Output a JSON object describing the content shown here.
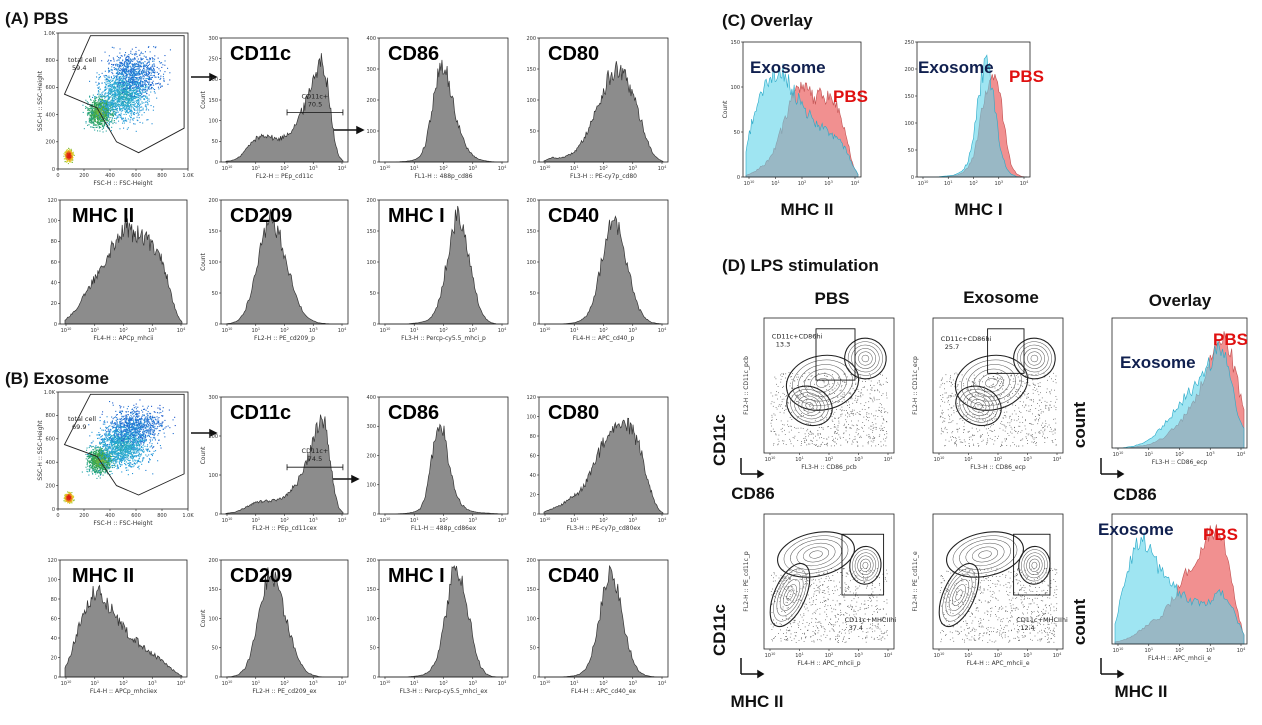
{
  "figure": {
    "sections": {
      "A": "(A) PBS",
      "B": "(B) Exosome",
      "C": "(C) Overlay",
      "D": "(D) LPS stimulation"
    },
    "colors": {
      "hist": "#8c8c8c",
      "exosome": "#5fd3ea",
      "pbs": "#f08a8a",
      "exosome_label": "#10204f",
      "pbs_label": "#e01010"
    }
  },
  "chart_data": [
    {
      "id": "A-scatter",
      "type": "scatter",
      "xlabel": "FSC-H :: FSC-Height",
      "ylabel": "SSC-H :: SSC-Height",
      "xticks": [
        "0",
        "200",
        "400",
        "600",
        "800",
        "1.0K"
      ],
      "yticks": [
        "0",
        "200",
        "400",
        "600",
        "800",
        "1.0K"
      ],
      "gate": {
        "name": "total cell",
        "value": "59.4"
      }
    },
    {
      "id": "A-cd11c",
      "type": "histogram",
      "marker": "CD11c",
      "xlabel": "FL2-H :: PEp_cd11c",
      "ylabel": "Count",
      "yticks": [
        "0",
        "50",
        "100",
        "150",
        "200",
        "250",
        "300"
      ],
      "ylim": [
        0,
        300
      ],
      "gate": {
        "name": "CD11c+",
        "value": "70.5"
      },
      "curve": [
        2,
        3,
        6,
        12,
        24,
        38,
        50,
        60,
        65,
        70,
        66,
        60,
        58,
        62,
        70,
        80,
        95,
        115,
        140,
        170,
        210,
        240,
        255,
        230,
        150,
        60,
        15,
        3
      ]
    },
    {
      "id": "A-cd86",
      "type": "histogram",
      "marker": "CD86",
      "xlabel": "FL1-H :: 488p_cd86",
      "ylabel": "",
      "yticks": [
        "0",
        "100",
        "200",
        "300",
        "400"
      ],
      "ylim": [
        0,
        400
      ],
      "curve": [
        0,
        0,
        0,
        1,
        2,
        4,
        8,
        20,
        60,
        150,
        260,
        340,
        310,
        230,
        150,
        90,
        50,
        25,
        12,
        6,
        3,
        1,
        0,
        0
      ]
    },
    {
      "id": "A-cd80",
      "type": "histogram",
      "marker": "CD80",
      "xlabel": "FL3-H :: PE-cy7p_cd80",
      "ylabel": "",
      "yticks": [
        "0",
        "50",
        "100",
        "150",
        "200"
      ],
      "ylim": [
        0,
        200
      ],
      "curve": [
        2,
        5,
        8,
        6,
        8,
        10,
        14,
        20,
        30,
        45,
        62,
        80,
        100,
        120,
        140,
        150,
        155,
        150,
        140,
        120,
        100,
        75,
        50,
        28,
        12,
        5,
        1
      ]
    },
    {
      "id": "A-mhcii",
      "type": "histogram",
      "marker": "MHC II",
      "xlabel": "FL4-H :: APCp_mhcii",
      "ylabel": "",
      "yticks": [
        "0",
        "20",
        "40",
        "60",
        "80",
        "100",
        "120"
      ],
      "ylim": [
        0,
        120
      ],
      "curve": [
        4,
        8,
        12,
        18,
        25,
        33,
        40,
        48,
        56,
        64,
        72,
        80,
        88,
        95,
        98,
        95,
        92,
        90,
        88,
        85,
        82,
        78,
        70,
        56,
        40,
        22,
        8,
        2
      ]
    },
    {
      "id": "A-cd209",
      "type": "histogram",
      "marker": "CD209",
      "xlabel": "FL2-H :: PE_cd209_p",
      "ylabel": "Count",
      "yticks": [
        "0",
        "50",
        "100",
        "150",
        "200"
      ],
      "ylim": [
        0,
        200
      ],
      "curve": [
        0,
        2,
        6,
        20,
        50,
        100,
        150,
        180,
        165,
        140,
        100,
        60,
        30,
        14,
        6,
        2,
        1,
        0,
        0,
        0
      ]
    },
    {
      "id": "A-mhci",
      "type": "histogram",
      "marker": "MHC I",
      "xlabel": "FL3-H :: Percp-cy5.5_mhci_p",
      "ylabel": "",
      "yticks": [
        "0",
        "50",
        "100",
        "150",
        "200"
      ],
      "ylim": [
        0,
        200
      ],
      "curve": [
        0,
        0,
        0,
        0,
        0,
        1,
        2,
        4,
        8,
        20,
        50,
        100,
        160,
        185,
        160,
        110,
        60,
        25,
        8,
        2,
        0,
        0
      ]
    },
    {
      "id": "A-cd40",
      "type": "histogram",
      "marker": "CD40",
      "xlabel": "FL4-H :: APC_cd40_p",
      "ylabel": "",
      "yticks": [
        "0",
        "50",
        "100",
        "150",
        "200"
      ],
      "ylim": [
        0,
        200
      ],
      "curve": [
        0,
        0,
        0,
        0,
        1,
        2,
        5,
        12,
        30,
        70,
        120,
        165,
        180,
        150,
        100,
        55,
        25,
        10,
        3,
        1,
        0
      ]
    },
    {
      "id": "B-scatter",
      "type": "scatter",
      "xlabel": "FSC-H :: FSC-Height",
      "ylabel": "SSC-H :: SSC-Height",
      "xticks": [
        "0",
        "200",
        "400",
        "600",
        "800",
        "1.0K"
      ],
      "yticks": [
        "0",
        "200",
        "400",
        "600",
        "800",
        "1.0K"
      ],
      "gate": {
        "name": "total cell",
        "value": "69.9"
      }
    },
    {
      "id": "B-cd11c",
      "type": "histogram",
      "marker": "CD11c",
      "xlabel": "FL2-H :: PEp_cd11cex",
      "ylabel": "Count",
      "yticks": [
        "0",
        "100",
        "200",
        "300"
      ],
      "ylim": [
        0,
        300
      ],
      "gate": {
        "name": "CD11c+",
        "value": "74.5"
      },
      "curve": [
        2,
        3,
        5,
        10,
        16,
        22,
        28,
        32,
        34,
        35,
        36,
        38,
        42,
        48,
        58,
        72,
        90,
        115,
        145,
        180,
        220,
        260,
        245,
        160,
        70,
        18,
        4
      ]
    },
    {
      "id": "B-cd86",
      "type": "histogram",
      "marker": "CD86",
      "xlabel": "FL1-H :: 488p_cd86ex",
      "ylabel": "",
      "yticks": [
        "0",
        "100",
        "200",
        "300",
        "400"
      ],
      "ylim": [
        0,
        400
      ],
      "curve": [
        0,
        0,
        0,
        1,
        2,
        4,
        8,
        18,
        60,
        170,
        300,
        350,
        250,
        140,
        70,
        35,
        18,
        10,
        6,
        4,
        3,
        2,
        1,
        0
      ]
    },
    {
      "id": "B-cd80",
      "type": "histogram",
      "marker": "CD80",
      "xlabel": "FL3-H :: PE-cy7p_cd80ex",
      "ylabel": "",
      "yticks": [
        "0",
        "20",
        "40",
        "60",
        "80",
        "100",
        "120"
      ],
      "ylim": [
        0,
        120
      ],
      "curve": [
        2,
        4,
        6,
        8,
        10,
        14,
        18,
        20,
        24,
        30,
        38,
        48,
        60,
        72,
        82,
        88,
        92,
        96,
        98,
        95,
        90,
        80,
        66,
        48,
        30,
        14,
        5,
        1
      ]
    },
    {
      "id": "B-mhcii",
      "type": "histogram",
      "marker": "MHC II",
      "xlabel": "FL4-H :: APCp_mhciiex",
      "ylabel": "",
      "yticks": [
        "0",
        "20",
        "40",
        "60",
        "80",
        "100",
        "120"
      ],
      "ylim": [
        0,
        120
      ],
      "curve": [
        10,
        22,
        38,
        55,
        70,
        82,
        90,
        92,
        88,
        80,
        72,
        64,
        56,
        50,
        44,
        40,
        36,
        32,
        28,
        24,
        20,
        16,
        12,
        8,
        4,
        1
      ]
    },
    {
      "id": "B-cd209",
      "type": "histogram",
      "marker": "CD209",
      "xlabel": "FL2-H :: PE_cd209_ex",
      "ylabel": "Count",
      "yticks": [
        "0",
        "50",
        "100",
        "150",
        "200"
      ],
      "ylim": [
        0,
        200
      ],
      "curve": [
        0,
        1,
        4,
        14,
        40,
        90,
        150,
        190,
        175,
        140,
        95,
        55,
        26,
        10,
        4,
        1,
        0,
        0,
        0,
        0
      ]
    },
    {
      "id": "B-mhci",
      "type": "histogram",
      "marker": "MHC I",
      "xlabel": "FL3-H :: Percp-cy5.5_mhci_ex",
      "ylabel": "",
      "yticks": [
        "0",
        "50",
        "100",
        "150",
        "200"
      ],
      "ylim": [
        0,
        200
      ],
      "curve": [
        0,
        0,
        0,
        0,
        0,
        1,
        2,
        4,
        10,
        25,
        60,
        120,
        180,
        200,
        170,
        110,
        55,
        20,
        6,
        1,
        0,
        0
      ]
    },
    {
      "id": "B-cd40",
      "type": "histogram",
      "marker": "CD40",
      "xlabel": "FL4-H :: APC_cd40_ex",
      "ylabel": "",
      "yticks": [
        "0",
        "50",
        "100",
        "150",
        "200"
      ],
      "ylim": [
        0,
        200
      ],
      "curve": [
        0,
        0,
        0,
        0,
        1,
        2,
        5,
        14,
        40,
        90,
        150,
        195,
        175,
        120,
        65,
        28,
        10,
        3,
        1,
        0,
        0
      ]
    },
    {
      "id": "C-mhcii",
      "type": "overlay-histogram",
      "xlabel": "",
      "ylabel": "Count",
      "yticks": [
        "0",
        "50",
        "100",
        "150"
      ],
      "ylim": [
        0,
        150
      ],
      "axis_title": "MHC II",
      "legend": {
        "exosome": "Exosome",
        "pbs": "PBS"
      },
      "series": [
        {
          "name": "Exosome",
          "curve": [
            30,
            55,
            75,
            90,
            100,
            108,
            112,
            118,
            122,
            115,
            105,
            95,
            88,
            80,
            72,
            66,
            60,
            56,
            52,
            48,
            44,
            40,
            34,
            24,
            12,
            3
          ]
        },
        {
          "name": "PBS",
          "curve": [
            2,
            4,
            6,
            10,
            14,
            20,
            28,
            40,
            55,
            70,
            85,
            95,
            100,
            98,
            96,
            92,
            94,
            96,
            92,
            88,
            82,
            72,
            55,
            32,
            12,
            3
          ]
        }
      ]
    },
    {
      "id": "C-mhci",
      "type": "overlay-histogram",
      "xlabel": "",
      "ylabel": "",
      "yticks": [
        "0",
        "50",
        "100",
        "150",
        "200",
        "250"
      ],
      "ylim": [
        0,
        250
      ],
      "axis_title": "MHC I",
      "legend": {
        "exosome": "Exosome",
        "pbs": "PBS"
      },
      "series": [
        {
          "name": "Exosome",
          "curve": [
            0,
            0,
            0,
            0,
            1,
            2,
            3,
            6,
            12,
            30,
            80,
            160,
            215,
            205,
            130,
            60,
            20,
            6,
            1,
            0,
            0
          ]
        },
        {
          "name": "PBS",
          "curve": [
            0,
            0,
            0,
            0,
            0,
            1,
            2,
            4,
            8,
            18,
            40,
            90,
            150,
            200,
            210,
            160,
            80,
            25,
            6,
            1,
            0
          ]
        }
      ]
    },
    {
      "id": "D-pbs-cd86",
      "type": "contour",
      "column": "PBS",
      "xlabel": "FL3-H :: CD86_pcb",
      "ylabel": "FL2-H :: CD11c_pcb",
      "gate": {
        "name": "CD11c+CD86hi",
        "value": "13.3"
      }
    },
    {
      "id": "D-exo-cd86",
      "type": "contour",
      "column": "Exosome",
      "xlabel": "FL3-H :: CD86_ecp",
      "ylabel": "FL2-H :: CD11c_ecp",
      "gate": {
        "name": "CD11c+CD86hi",
        "value": "25.7"
      }
    },
    {
      "id": "D-ovl-cd86",
      "type": "overlay-histogram",
      "column": "Overlay",
      "xlabel": "FL3-H :: CD86_ecp",
      "ylabel": "",
      "legend": {
        "exosome": "Exosome",
        "pbs": "PBS"
      },
      "series": [
        {
          "name": "Exosome",
          "curve": [
            0,
            0,
            1,
            2,
            4,
            7,
            12,
            18,
            26,
            34,
            42,
            52,
            60,
            68,
            78,
            88,
            100,
            108,
            100,
            70,
            40,
            20
          ]
        },
        {
          "name": "PBS",
          "curve": [
            0,
            0,
            0,
            1,
            2,
            3,
            5,
            8,
            12,
            18,
            24,
            32,
            42,
            54,
            68,
            84,
            100,
            118,
            120,
            100,
            70,
            40
          ]
        }
      ]
    },
    {
      "id": "D-pbs-mhcii",
      "type": "contour",
      "column": "PBS",
      "xlabel": "FL4-H :: APC_mhcii_p",
      "ylabel": "FL2-H :: PE_cd11c_p",
      "gate": {
        "name": "CD11c+MHCIIhi",
        "value": "37.4"
      }
    },
    {
      "id": "D-exo-mhcii",
      "type": "contour",
      "column": "Exosome",
      "xlabel": "FL4-H :: APC_mhcii_e",
      "ylabel": "FL2-H :: PE_cd11c_e",
      "gate": {
        "name": "CD11c+MHCIIhi",
        "value": "12.4"
      }
    },
    {
      "id": "D-ovl-mhcii",
      "type": "overlay-histogram",
      "column": "Overlay",
      "xlabel": "FL4-H :: APC_mhcii_e",
      "ylabel": "",
      "legend": {
        "exosome": "Exosome",
        "pbs": "PBS"
      },
      "series": [
        {
          "name": "Exosome",
          "curve": [
            20,
            45,
            70,
            90,
            100,
            95,
            85,
            75,
            65,
            58,
            52,
            46,
            42,
            40,
            38,
            40,
            44,
            48,
            46,
            36,
            22,
            8
          ]
        },
        {
          "name": "PBS",
          "curve": [
            2,
            3,
            5,
            8,
            12,
            16,
            20,
            24,
            30,
            38,
            48,
            60,
            72,
            82,
            92,
            100,
            104,
            102,
            90,
            65,
            30,
            8
          ]
        }
      ]
    }
  ],
  "labels_D": {
    "col_pbs": "PBS",
    "col_exosome": "Exosome",
    "col_overlay": "Overlay",
    "y_cd11c": "CD11c",
    "y_count": "count",
    "x_cd86": "CD86",
    "x_mhcii": "MHC II"
  },
  "log_ticks": [
    "10",
    "1",
    "2",
    "3",
    "4"
  ]
}
